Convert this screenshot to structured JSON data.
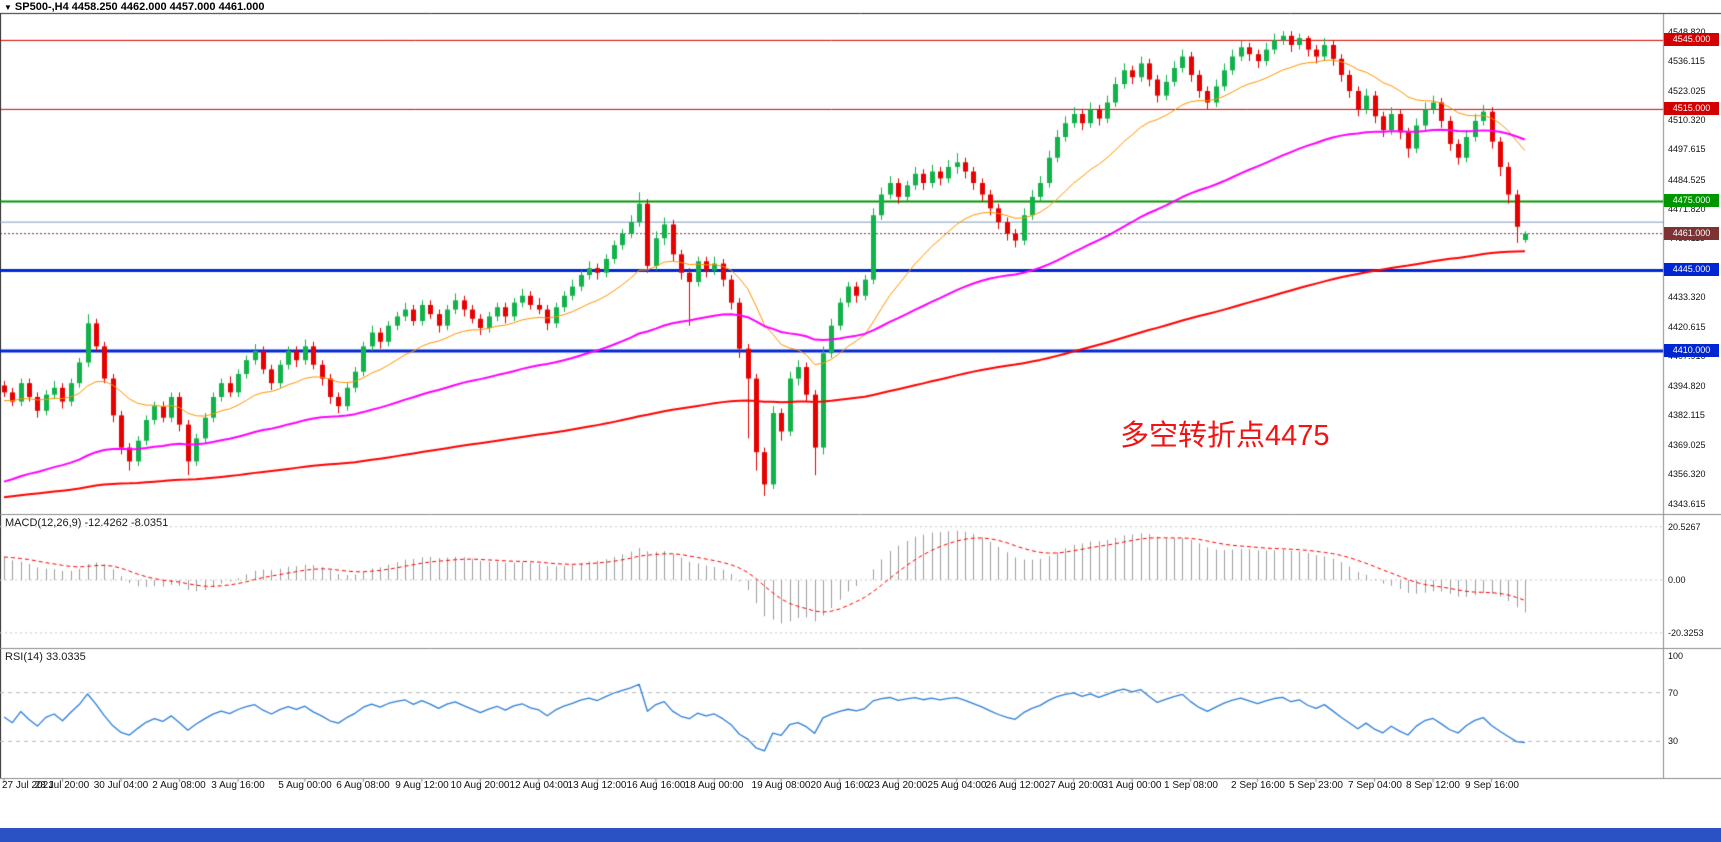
{
  "header": {
    "collapse_arrow": "▼",
    "symbol_ohlc": "SP500-,H4  4458.250 4462.000 4457.000 4461.000"
  },
  "indicators": {
    "macd": {
      "label": "MACD(12,26,9) -12.4262 -8.0351",
      "axis": [
        {
          "value": 20.5267,
          "label": "20.5267"
        },
        {
          "value": 0,
          "label": "0.00"
        },
        {
          "value": -20.3253,
          "label": "-20.3253"
        }
      ]
    },
    "rsi": {
      "label": "RSI(14) 33.0335",
      "axis": [
        {
          "value": 100,
          "label": "100"
        },
        {
          "value": 70,
          "label": "70"
        },
        {
          "value": 30,
          "label": "30"
        }
      ],
      "levels": [
        70,
        30
      ]
    }
  },
  "chart_data": {
    "type": "candlestick",
    "symbol": "SP500-",
    "timeframe": "H4",
    "quote": {
      "open": 4458.25,
      "high": 4462.0,
      "low": 4457.0,
      "close": 4461.0
    },
    "title": "SP500- H4 candlestick chart with MACD and RSI",
    "colors": {
      "up": "#12b24a",
      "down": "#e60000",
      "histogram": "#9e9e9e",
      "rsi": "#2e7fd6",
      "signal": "#ff0000"
    },
    "price_axis": {
      "min": 4340,
      "max": 4553,
      "labels": [
        {
          "value": 4548.82,
          "label": "4548.820"
        },
        {
          "value": 4536.115,
          "label": "4536.115"
        },
        {
          "value": 4523.025,
          "label": "4523.025"
        },
        {
          "value": 4510.32,
          "label": "4510.320"
        },
        {
          "value": 4497.615,
          "label": "4497.615"
        },
        {
          "value": 4484.525,
          "label": "4484.525"
        },
        {
          "value": 4471.82,
          "label": "4471.820"
        },
        {
          "value": 4459.115,
          "label": "4459.115"
        },
        {
          "value": 4446.41,
          "label": "4446.410"
        },
        {
          "value": 4433.32,
          "label": "4433.320"
        },
        {
          "value": 4420.615,
          "label": "4420.615"
        },
        {
          "value": 4407.91,
          "label": "4407.910"
        },
        {
          "value": 4394.82,
          "label": "4394.820"
        },
        {
          "value": 4382.115,
          "label": "4382.115"
        },
        {
          "value": 4369.025,
          "label": "4369.025"
        },
        {
          "value": 4356.32,
          "label": "4356.320"
        },
        {
          "value": 4343.615,
          "label": "4343.615"
        }
      ]
    },
    "h_lines": [
      {
        "price": 4545.0,
        "label": "4545.000",
        "color": "#d20000",
        "width": 1
      },
      {
        "price": 4515.0,
        "label": "4515.000",
        "color": "#d20000",
        "width": 1
      },
      {
        "price": 4475.0,
        "label": "4475.000",
        "color": "#009600",
        "width": 2
      },
      {
        "price": 4445.0,
        "label": "4445.000",
        "color": "#0026d2",
        "width": 3
      },
      {
        "price": 4410.0,
        "label": "4410.000",
        "color": "#0026d2",
        "width": 3
      }
    ],
    "extra_lines": [
      {
        "price": 4466.0,
        "color": "#7f9db9",
        "width": 1
      }
    ],
    "current_price": {
      "price": 4461.0,
      "label": "4461.000",
      "color": "#7d3333"
    },
    "moving_averages": [
      {
        "name": "fast-ma",
        "color": "#ff9500",
        "width": 1,
        "period": 18,
        "seed": 4388
      },
      {
        "name": "medium-ma",
        "color": "#ff00ff",
        "width": 2,
        "period": 65,
        "seed": 4352
      },
      {
        "name": "slow-ma",
        "color": "#ff0000",
        "width": 2,
        "period": 210,
        "seed": 4346
      }
    ],
    "annotation": {
      "text": "多空转折点4475",
      "color": "#f01414"
    },
    "x_ticks": {
      "bars": [
        0,
        7,
        14,
        21,
        28,
        36,
        43,
        50,
        57,
        64,
        71,
        78,
        85,
        93,
        100,
        107,
        114,
        121,
        128,
        135,
        142,
        150,
        157,
        164,
        171,
        178
      ],
      "labels": [
        "27 Jul 2021",
        "28 Jul 20:00",
        "30 Jul 04:00",
        "2 Aug 08:00",
        "3 Aug 16:00",
        "5 Aug 00:00",
        "6 Aug 08:00",
        "9 Aug 12:00",
        "10 Aug 20:00",
        "12 Aug 04:00",
        "13 Aug 12:00",
        "16 Aug 16:00",
        "18 Aug 00:00",
        "19 Aug 08:00",
        "20 Aug 16:00",
        "23 Aug 20:00",
        "25 Aug 04:00",
        "26 Aug 12:00",
        "27 Aug 20:00",
        "31 Aug 00:00",
        "1 Sep 08:00",
        "2 Sep 16:00",
        "5 Sep 23:00",
        "7 Sep 04:00",
        "8 Sep 12:00",
        "9 Sep 16:00"
      ]
    },
    "candles": [
      [
        4395,
        4397,
        4390,
        4392
      ],
      [
        4392,
        4394,
        4386,
        4388
      ],
      [
        4388,
        4398,
        4386,
        4396
      ],
      [
        4396,
        4398,
        4388,
        4390
      ],
      [
        4390,
        4392,
        4381,
        4384
      ],
      [
        4384,
        4393,
        4382,
        4391
      ],
      [
        4391,
        4397,
        4389,
        4394
      ],
      [
        4394,
        4396,
        4385,
        4388
      ],
      [
        4388,
        4398,
        4386,
        4396
      ],
      [
        4396,
        4407,
        4394,
        4405
      ],
      [
        4405,
        4426,
        4403,
        4422
      ],
      [
        4422,
        4424,
        4410,
        4412
      ],
      [
        4412,
        4414,
        4396,
        4398
      ],
      [
        4398,
        4400,
        4379,
        4382
      ],
      [
        4382,
        4384,
        4365,
        4368
      ],
      [
        4368,
        4370,
        4358,
        4362
      ],
      [
        4362,
        4373,
        4360,
        4371
      ],
      [
        4371,
        4382,
        4369,
        4380
      ],
      [
        4380,
        4388,
        4378,
        4386
      ],
      [
        4386,
        4388,
        4379,
        4381
      ],
      [
        4381,
        4392,
        4379,
        4390
      ],
      [
        4390,
        4392,
        4375,
        4378
      ],
      [
        4378,
        4380,
        4356,
        4362
      ],
      [
        4362,
        4374,
        4360,
        4372
      ],
      [
        4372,
        4383,
        4370,
        4381
      ],
      [
        4381,
        4392,
        4379,
        4390
      ],
      [
        4390,
        4398,
        4388,
        4396
      ],
      [
        4396,
        4399,
        4390,
        4392
      ],
      [
        4392,
        4402,
        4390,
        4400
      ],
      [
        4400,
        4408,
        4398,
        4406
      ],
      [
        4406,
        4413,
        4404,
        4410
      ],
      [
        4410,
        4412,
        4400,
        4402
      ],
      [
        4402,
        4404,
        4393,
        4396
      ],
      [
        4396,
        4406,
        4394,
        4404
      ],
      [
        4404,
        4412,
        4402,
        4410
      ],
      [
        4410,
        4412,
        4403,
        4406
      ],
      [
        4406,
        4415,
        4404,
        4412
      ],
      [
        4412,
        4414,
        4402,
        4404
      ],
      [
        4404,
        4406,
        4395,
        4398
      ],
      [
        4398,
        4400,
        4387,
        4390
      ],
      [
        4390,
        4392,
        4383,
        4386
      ],
      [
        4386,
        4396,
        4384,
        4394
      ],
      [
        4394,
        4403,
        4392,
        4401
      ],
      [
        4401,
        4414,
        4399,
        4412
      ],
      [
        4412,
        4421,
        4410,
        4418
      ],
      [
        4418,
        4420,
        4411,
        4414
      ],
      [
        4414,
        4423,
        4412,
        4421
      ],
      [
        4421,
        4427,
        4419,
        4425
      ],
      [
        4425,
        4431,
        4423,
        4428
      ],
      [
        4428,
        4430,
        4421,
        4423
      ],
      [
        4423,
        4432,
        4421,
        4430
      ],
      [
        4430,
        4432,
        4424,
        4426
      ],
      [
        4426,
        4428,
        4418,
        4421
      ],
      [
        4421,
        4430,
        4419,
        4428
      ],
      [
        4428,
        4435,
        4426,
        4432
      ],
      [
        4432,
        4434,
        4425,
        4428
      ],
      [
        4428,
        4430,
        4422,
        4424
      ],
      [
        4424,
        4426,
        4417,
        4420
      ],
      [
        4420,
        4427,
        4418,
        4425
      ],
      [
        4425,
        4431,
        4423,
        4429
      ],
      [
        4429,
        4431,
        4422,
        4425
      ],
      [
        4425,
        4433,
        4423,
        4431
      ],
      [
        4431,
        4437,
        4429,
        4434
      ],
      [
        4434,
        4436,
        4428,
        4430
      ],
      [
        4430,
        4433,
        4426,
        4428
      ],
      [
        4428,
        4430,
        4419,
        4422
      ],
      [
        4422,
        4431,
        4420,
        4429
      ],
      [
        4429,
        4436,
        4427,
        4434
      ],
      [
        4434,
        4441,
        4432,
        4438
      ],
      [
        4438,
        4445,
        4436,
        4443
      ],
      [
        4443,
        4449,
        4441,
        4446
      ],
      [
        4446,
        4448,
        4441,
        4444
      ],
      [
        4444,
        4452,
        4442,
        4450
      ],
      [
        4450,
        4458,
        4448,
        4456
      ],
      [
        4456,
        4463,
        4454,
        4461
      ],
      [
        4461,
        4469,
        4459,
        4466
      ],
      [
        4466,
        4479,
        4464,
        4474
      ],
      [
        4474,
        4476,
        4444,
        4447
      ],
      [
        4447,
        4462,
        4445,
        4459
      ],
      [
        4459,
        4468,
        4456,
        4465
      ],
      [
        4465,
        4467,
        4449,
        4452
      ],
      [
        4452,
        4454,
        4441,
        4444
      ],
      [
        4444,
        4446,
        4421,
        4440
      ],
      [
        4440,
        4451,
        4438,
        4449
      ],
      [
        4449,
        4451,
        4442,
        4445
      ],
      [
        4445,
        4451,
        4443,
        4448
      ],
      [
        4448,
        4450,
        4438,
        4441
      ],
      [
        4441,
        4443,
        4428,
        4431
      ],
      [
        4431,
        4433,
        4407,
        4411
      ],
      [
        4411,
        4413,
        4372,
        4398
      ],
      [
        4398,
        4400,
        4358,
        4366
      ],
      [
        4366,
        4368,
        4347,
        4352
      ],
      [
        4352,
        4386,
        4350,
        4383
      ],
      [
        4383,
        4385,
        4371,
        4375
      ],
      [
        4375,
        4401,
        4373,
        4398
      ],
      [
        4398,
        4406,
        4395,
        4403
      ],
      [
        4403,
        4405,
        4388,
        4391
      ],
      [
        4391,
        4393,
        4356,
        4368
      ],
      [
        4368,
        4412,
        4365,
        4409
      ],
      [
        4409,
        4424,
        4407,
        4421
      ],
      [
        4421,
        4433,
        4419,
        4431
      ],
      [
        4431,
        4440,
        4429,
        4438
      ],
      [
        4438,
        4440,
        4431,
        4434
      ],
      [
        4434,
        4443,
        4432,
        4441
      ],
      [
        4441,
        4472,
        4439,
        4469
      ],
      [
        4469,
        4481,
        4467,
        4478
      ],
      [
        4478,
        4486,
        4476,
        4483
      ],
      [
        4483,
        4485,
        4474,
        4477
      ],
      [
        4477,
        4484,
        4475,
        4482
      ],
      [
        4482,
        4490,
        4480,
        4487
      ],
      [
        4487,
        4489,
        4480,
        4483
      ],
      [
        4483,
        4491,
        4481,
        4488
      ],
      [
        4488,
        4490,
        4482,
        4485
      ],
      [
        4485,
        4493,
        4483,
        4490
      ],
      [
        4490,
        4496,
        4487,
        4492
      ],
      [
        4492,
        4494,
        4485,
        4488
      ],
      [
        4488,
        4490,
        4480,
        4483
      ],
      [
        4483,
        4485,
        4475,
        4478
      ],
      [
        4478,
        4480,
        4469,
        4472
      ],
      [
        4472,
        4474,
        4463,
        4466
      ],
      [
        4466,
        4468,
        4458,
        4461
      ],
      [
        4461,
        4463,
        4455,
        4458
      ],
      [
        4458,
        4472,
        4456,
        4469
      ],
      [
        4469,
        4480,
        4467,
        4477
      ],
      [
        4477,
        4486,
        4475,
        4483
      ],
      [
        4483,
        4497,
        4481,
        4494
      ],
      [
        4494,
        4506,
        4492,
        4503
      ],
      [
        4503,
        4512,
        4501,
        4509
      ],
      [
        4509,
        4516,
        4507,
        4513
      ],
      [
        4513,
        4515,
        4506,
        4509
      ],
      [
        4509,
        4518,
        4507,
        4515
      ],
      [
        4515,
        4517,
        4508,
        4511
      ],
      [
        4511,
        4521,
        4509,
        4518
      ],
      [
        4518,
        4529,
        4516,
        4526
      ],
      [
        4526,
        4535,
        4524,
        4532
      ],
      [
        4532,
        4534,
        4526,
        4529
      ],
      [
        4529,
        4538,
        4527,
        4535
      ],
      [
        4535,
        4537,
        4525,
        4528
      ],
      [
        4528,
        4530,
        4518,
        4521
      ],
      [
        4521,
        4530,
        4519,
        4527
      ],
      [
        4527,
        4536,
        4525,
        4533
      ],
      [
        4533,
        4541,
        4531,
        4538
      ],
      [
        4538,
        4540,
        4527,
        4530
      ],
      [
        4530,
        4532,
        4520,
        4523
      ],
      [
        4523,
        4525,
        4515,
        4518
      ],
      [
        4518,
        4528,
        4516,
        4525
      ],
      [
        4525,
        4535,
        4523,
        4532
      ],
      [
        4532,
        4541,
        4530,
        4538
      ],
      [
        4538,
        4545,
        4536,
        4542
      ],
      [
        4542,
        4544,
        4536,
        4539
      ],
      [
        4539,
        4541,
        4533,
        4536
      ],
      [
        4536,
        4544,
        4534,
        4541
      ],
      [
        4541,
        4548,
        4539,
        4545
      ],
      [
        4545,
        4549,
        4543,
        4547
      ],
      [
        4547,
        4549,
        4540,
        4543
      ],
      [
        4543,
        4548,
        4541,
        4546
      ],
      [
        4546,
        4547,
        4538,
        4541
      ],
      [
        4541,
        4543,
        4535,
        4538
      ],
      [
        4538,
        4546,
        4536,
        4543
      ],
      [
        4543,
        4545,
        4534,
        4537
      ],
      [
        4537,
        4539,
        4527,
        4530
      ],
      [
        4530,
        4532,
        4520,
        4523
      ],
      [
        4523,
        4525,
        4512,
        4515
      ],
      [
        4515,
        4524,
        4513,
        4521
      ],
      [
        4521,
        4523,
        4509,
        4512
      ],
      [
        4512,
        4514,
        4503,
        4506
      ],
      [
        4506,
        4516,
        4504,
        4513
      ],
      [
        4513,
        4515,
        4502,
        4505
      ],
      [
        4505,
        4507,
        4494,
        4498
      ],
      [
        4498,
        4511,
        4496,
        4508
      ],
      [
        4508,
        4518,
        4506,
        4515
      ],
      [
        4515,
        4521,
        4513,
        4518
      ],
      [
        4518,
        4520,
        4507,
        4510
      ],
      [
        4510,
        4512,
        4497,
        4500
      ],
      [
        4500,
        4502,
        4491,
        4494
      ],
      [
        4494,
        4506,
        4492,
        4503
      ],
      [
        4503,
        4513,
        4501,
        4510
      ],
      [
        4510,
        4517,
        4508,
        4514
      ],
      [
        4514,
        4516,
        4498,
        4501
      ],
      [
        4501,
        4503,
        4486,
        4490
      ],
      [
        4490,
        4492,
        4474,
        4478
      ],
      [
        4478,
        4480,
        4457,
        4464
      ],
      [
        4458.25,
        4462,
        4457,
        4461
      ]
    ]
  }
}
